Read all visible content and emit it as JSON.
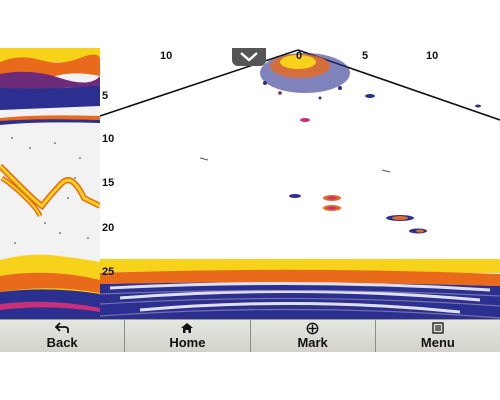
{
  "range": {
    "labels": [
      "10",
      "5",
      "0",
      "5",
      "10"
    ]
  },
  "depth": {
    "labels": [
      "5",
      "10",
      "15",
      "20",
      "25"
    ]
  },
  "toolbar": {
    "buttons": [
      {
        "label": "Back",
        "icon": "back-arrow-icon"
      },
      {
        "label": "Home",
        "icon": "home-icon"
      },
      {
        "label": "Mark",
        "icon": "crosshair-icon"
      },
      {
        "label": "Menu",
        "icon": "menu-list-icon"
      }
    ]
  },
  "colors": {
    "sonar_yellow": "#f6d31a",
    "sonar_orange": "#e86a1a",
    "sonar_blue": "#2b2f8f",
    "toolbar_bg": "#dcdcd6"
  }
}
